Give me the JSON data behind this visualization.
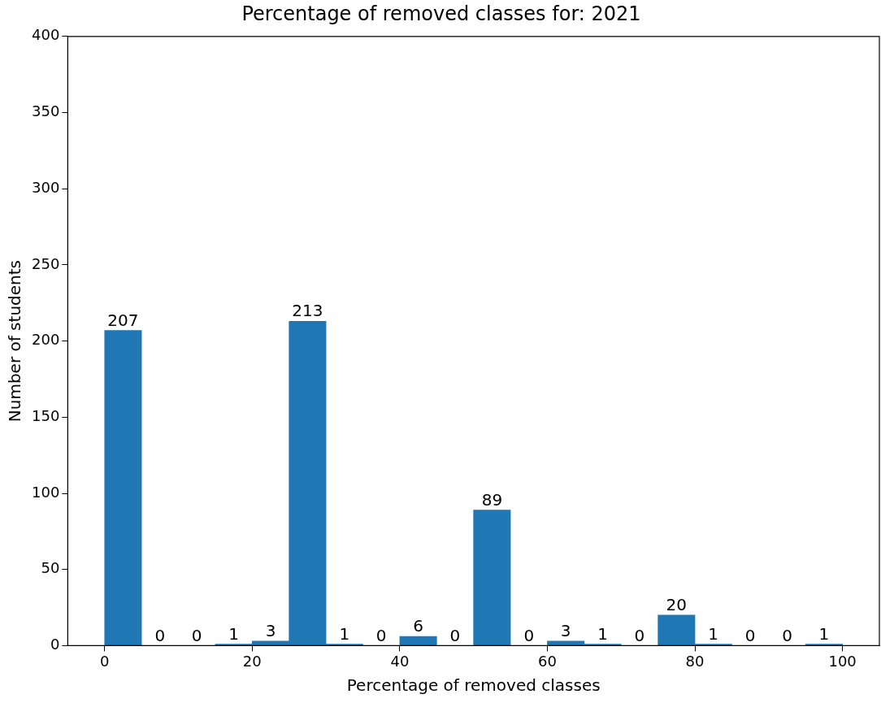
{
  "chart_data": {
    "type": "histogram",
    "title": "Percentage of removed classes for: 2021",
    "xlabel": "Percentage of removed classes",
    "ylabel": "Number of students",
    "bins": [
      0,
      5,
      10,
      15,
      20,
      25,
      30,
      35,
      40,
      45,
      50,
      55,
      60,
      65,
      70,
      75,
      80,
      85,
      90,
      95,
      100
    ],
    "values": [
      207,
      0,
      0,
      1,
      3,
      213,
      1,
      0,
      6,
      0,
      89,
      0,
      3,
      1,
      0,
      20,
      1,
      0,
      0,
      1
    ],
    "color": "#1f77b4",
    "xlim": [
      -5,
      105
    ],
    "xticks": [
      0,
      20,
      40,
      60,
      80,
      100
    ],
    "ylim": [
      0,
      400
    ],
    "yticks": [
      0,
      50,
      100,
      150,
      200,
      250,
      300,
      350,
      400
    ],
    "data_labels": true
  }
}
